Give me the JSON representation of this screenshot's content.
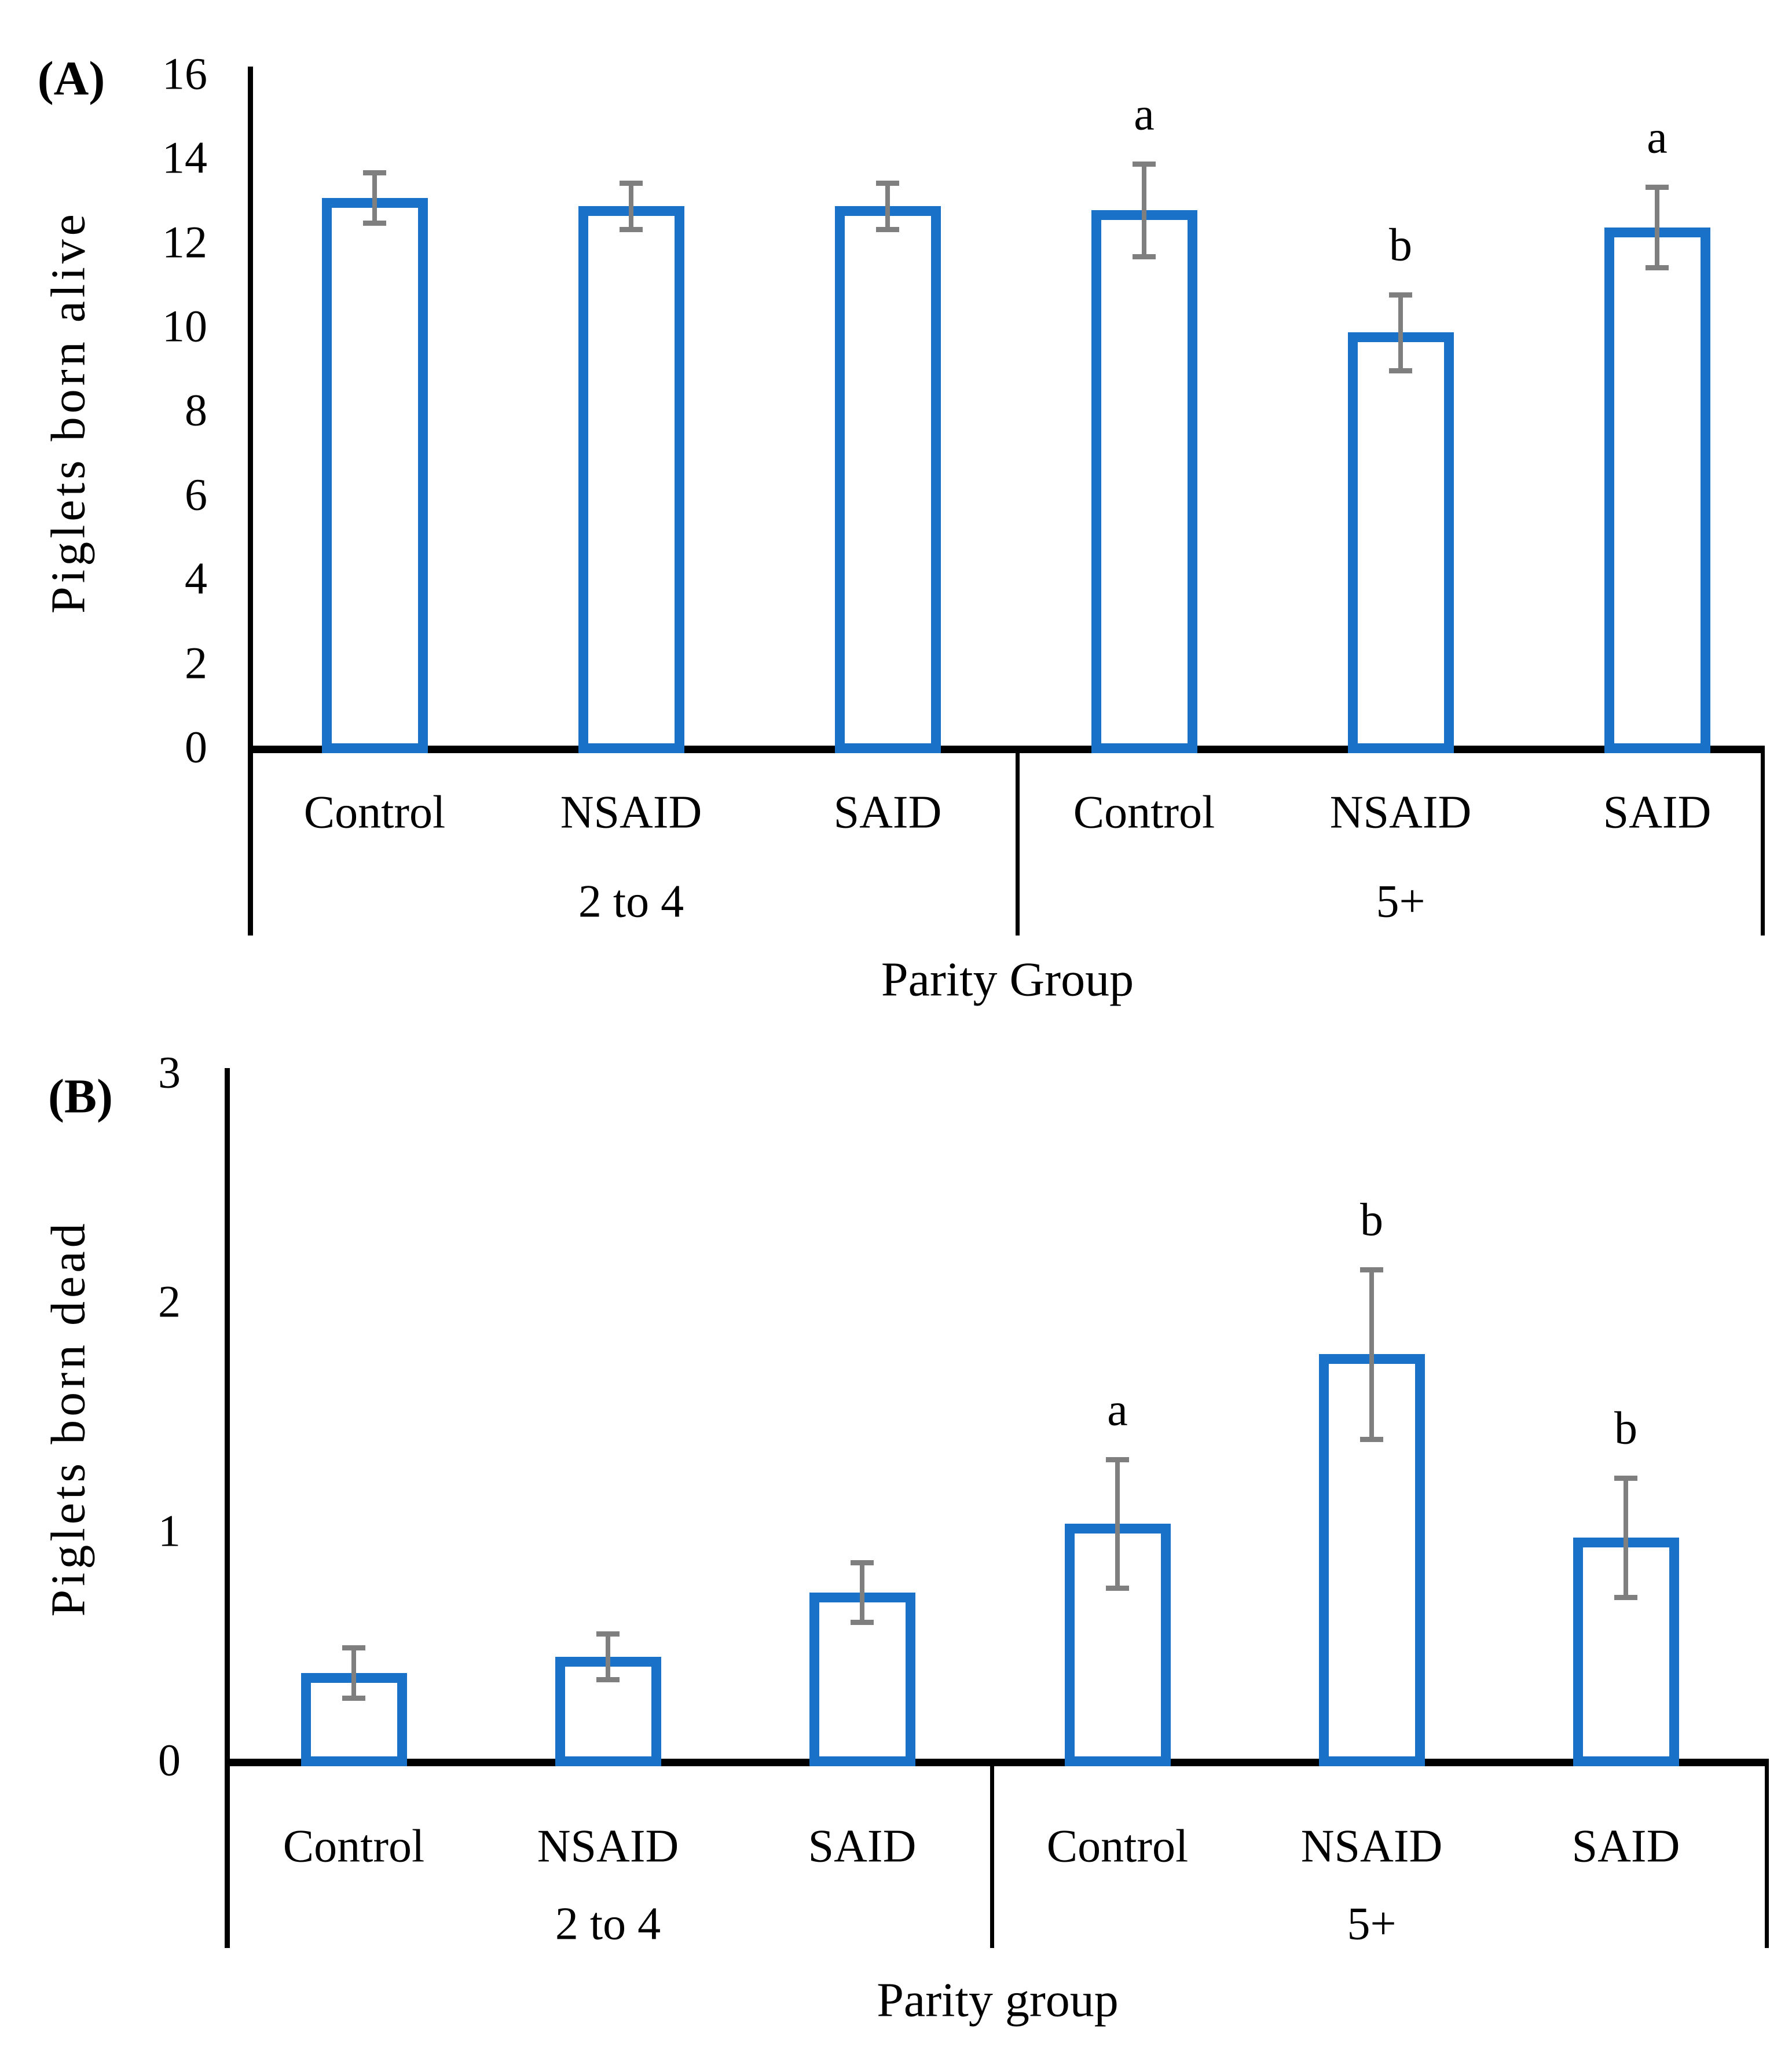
{
  "figure": {
    "description": "Two-panel bar chart of piglet outcomes by parity group and treatment",
    "panels": [
      "(A)",
      "(B)"
    ]
  },
  "chart_data": [
    {
      "type": "bar",
      "panel_tag": "(A)",
      "title": "",
      "ylabel": "Piglets born alive",
      "xlabel": "Parity Group",
      "ylim": [
        0,
        16
      ],
      "ytick_step": 2,
      "yticks": [
        0,
        2,
        4,
        6,
        8,
        10,
        12,
        14,
        16
      ],
      "grid": false,
      "legend": false,
      "bar_fill": "#ffffff",
      "bar_border_color": "#1972c8",
      "error_color": "#7f7f7f",
      "groups": [
        {
          "label": "2 to 4",
          "categories": [
            "Control",
            "NSAID",
            "SAID"
          ],
          "values": [
            13.1,
            12.9,
            12.9
          ],
          "errors": [
            0.6,
            0.55,
            0.55
          ],
          "letters": [
            "",
            "",
            ""
          ]
        },
        {
          "label": "5+",
          "categories": [
            "Control",
            "NSAID",
            "SAID"
          ],
          "values": [
            12.8,
            9.9,
            12.4
          ],
          "errors": [
            1.1,
            0.9,
            0.95
          ],
          "letters": [
            "a",
            "b",
            "a"
          ]
        }
      ]
    },
    {
      "type": "bar",
      "panel_tag": "(B)",
      "title": "",
      "ylabel": "Piglets born dead",
      "xlabel": "Parity group",
      "ylim": [
        0,
        3
      ],
      "ytick_step": 1,
      "yticks": [
        0,
        1,
        2,
        3
      ],
      "grid": false,
      "legend": false,
      "bar_fill": "#ffffff",
      "bar_border_color": "#1972c8",
      "error_color": "#7f7f7f",
      "groups": [
        {
          "label": "2 to 4",
          "categories": [
            "Control",
            "NSAID",
            "SAID"
          ],
          "values": [
            0.39,
            0.46,
            0.74
          ],
          "errors": [
            0.11,
            0.1,
            0.13
          ],
          "letters": [
            "",
            "",
            ""
          ]
        },
        {
          "label": "5+",
          "categories": [
            "Control",
            "NSAID",
            "SAID"
          ],
          "values": [
            1.04,
            1.78,
            0.98
          ],
          "errors": [
            0.28,
            0.37,
            0.26
          ],
          "letters": [
            "a",
            "b",
            "b"
          ]
        }
      ]
    }
  ]
}
